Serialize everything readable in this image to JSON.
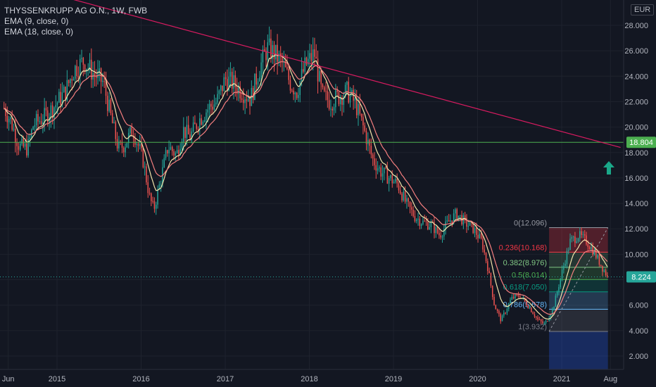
{
  "legend": {
    "symbol_line": "THYSSENKRUPP AG O.N., 1W, FWB",
    "ema1_line": "EMA (9, close, 0)",
    "ema2_line": "EMA (18, close, 0)"
  },
  "currency": "EUR",
  "colors": {
    "background": "#131722",
    "up": "#26a69a",
    "down": "#ef5350",
    "ema9": "#f3e5ab",
    "ema18": "#f57f7f",
    "trendline": "#d81b60",
    "hline": "#4caf50",
    "arrow": "#1aa889"
  },
  "chart_data": {
    "type": "candlestick",
    "title": "THYSSENKRUPP AG O.N., 1W, FWB",
    "xlabel": "",
    "ylabel": "EUR",
    "ylim": [
      1.0,
      29.0
    ],
    "y_ticks": [
      "28.000",
      "26.000",
      "24.000",
      "22.000",
      "20.000",
      "18.000",
      "16.000",
      "14.000",
      "12.000",
      "10.000",
      "8.000",
      "6.000",
      "4.000",
      "2.000"
    ],
    "y_tick_values": [
      28,
      26,
      24,
      22,
      20,
      18,
      16,
      14,
      12,
      10,
      8,
      6,
      4,
      2
    ],
    "x_ticks": [
      "Jun",
      "2015",
      "2016",
      "2017",
      "2018",
      "2019",
      "2020",
      "2021",
      "Aug"
    ],
    "x_tick_dates": [
      2014.42,
      2015.0,
      2016.0,
      2017.0,
      2018.0,
      2019.0,
      2020.0,
      2021.0,
      2021.58
    ],
    "x_range": [
      2014.37,
      2021.7
    ],
    "price_path": [
      [
        2014.37,
        21.5
      ],
      [
        2014.45,
        20.5
      ],
      [
        2014.55,
        18.5
      ],
      [
        2014.65,
        18.3
      ],
      [
        2014.72,
        20.2
      ],
      [
        2014.85,
        20.8
      ],
      [
        2014.95,
        21.5
      ],
      [
        2015.1,
        22.8
      ],
      [
        2015.2,
        24.5
      ],
      [
        2015.32,
        25.2
      ],
      [
        2015.42,
        24.3
      ],
      [
        2015.55,
        23.5
      ],
      [
        2015.65,
        20.5
      ],
      [
        2015.73,
        18.3
      ],
      [
        2015.8,
        18.6
      ],
      [
        2015.9,
        19.8
      ],
      [
        2016.02,
        17.5
      ],
      [
        2016.1,
        14.5
      ],
      [
        2016.15,
        13.5
      ],
      [
        2016.22,
        15.5
      ],
      [
        2016.32,
        18.5
      ],
      [
        2016.42,
        17.8
      ],
      [
        2016.5,
        19.8
      ],
      [
        2016.58,
        19.2
      ],
      [
        2016.68,
        20.5
      ],
      [
        2016.8,
        21.5
      ],
      [
        2016.9,
        22.0
      ],
      [
        2017.0,
        23.8
      ],
      [
        2017.1,
        23.4
      ],
      [
        2017.2,
        22.8
      ],
      [
        2017.3,
        22.2
      ],
      [
        2017.4,
        24.5
      ],
      [
        2017.5,
        26.2
      ],
      [
        2017.58,
        25.8
      ],
      [
        2017.68,
        25.0
      ],
      [
        2017.77,
        23.5
      ],
      [
        2017.85,
        22.8
      ],
      [
        2017.95,
        24.8
      ],
      [
        2018.06,
        25.8
      ],
      [
        2018.15,
        22.5
      ],
      [
        2018.25,
        22.0
      ],
      [
        2018.35,
        22.4
      ],
      [
        2018.45,
        22.8
      ],
      [
        2018.55,
        21.8
      ],
      [
        2018.65,
        19.8
      ],
      [
        2018.75,
        17.5
      ],
      [
        2018.85,
        16.5
      ],
      [
        2018.95,
        16.0
      ],
      [
        2019.05,
        15.5
      ],
      [
        2019.15,
        14.0
      ],
      [
        2019.25,
        13.0
      ],
      [
        2019.35,
        12.5
      ],
      [
        2019.45,
        12.3
      ],
      [
        2019.55,
        11.5
      ],
      [
        2019.65,
        12.5
      ],
      [
        2019.75,
        13.2
      ],
      [
        2019.85,
        12.5
      ],
      [
        2019.95,
        12.0
      ],
      [
        2020.05,
        11.0
      ],
      [
        2020.12,
        9.0
      ],
      [
        2020.2,
        6.0
      ],
      [
        2020.28,
        4.8
      ],
      [
        2020.4,
        6.5
      ],
      [
        2020.5,
        6.8
      ],
      [
        2020.62,
        5.8
      ],
      [
        2020.72,
        4.8
      ],
      [
        2020.8,
        4.5
      ],
      [
        2020.9,
        5.8
      ],
      [
        2021.0,
        8.5
      ],
      [
        2021.1,
        11.0
      ],
      [
        2021.2,
        11.5
      ],
      [
        2021.3,
        11.0
      ],
      [
        2021.4,
        10.0
      ],
      [
        2021.48,
        9.0
      ],
      [
        2021.55,
        8.224
      ]
    ],
    "series": [
      {
        "name": "EMA (9, close, 0)"
      },
      {
        "name": "EMA (18, close, 0)"
      }
    ],
    "horizontal_line": 18.804,
    "last_price": 8.224,
    "trendline": [
      [
        2014.37,
        31.5
      ],
      [
        2021.7,
        18.4
      ]
    ],
    "fibonacci": {
      "x_range": [
        2020.85,
        2021.55
      ],
      "levels": [
        {
          "ratio": "0",
          "value": 12.096,
          "label": "0(12.096)",
          "color": "#9598a1"
        },
        {
          "ratio": "0.236",
          "value": 10.168,
          "label": "0.236(10.168)",
          "color": "#f23645"
        },
        {
          "ratio": "0.382",
          "value": 8.976,
          "label": "0.382(8.976)",
          "color": "#81c784"
        },
        {
          "ratio": "0.5",
          "value": 8.014,
          "label": "0.5(8.014)",
          "color": "#4caf50"
        },
        {
          "ratio": "0.618",
          "value": 7.05,
          "label": "0.618(7.050)",
          "color": "#089981"
        },
        {
          "ratio": "0.786",
          "value": 5.678,
          "label": "0.786(5.678)",
          "color": "#64b5f6"
        },
        {
          "ratio": "1",
          "value": 3.932,
          "label": "1(3.932)",
          "color": "#787b86"
        }
      ]
    },
    "price_labels": {
      "hline": "18.804",
      "last": "8.224"
    }
  }
}
